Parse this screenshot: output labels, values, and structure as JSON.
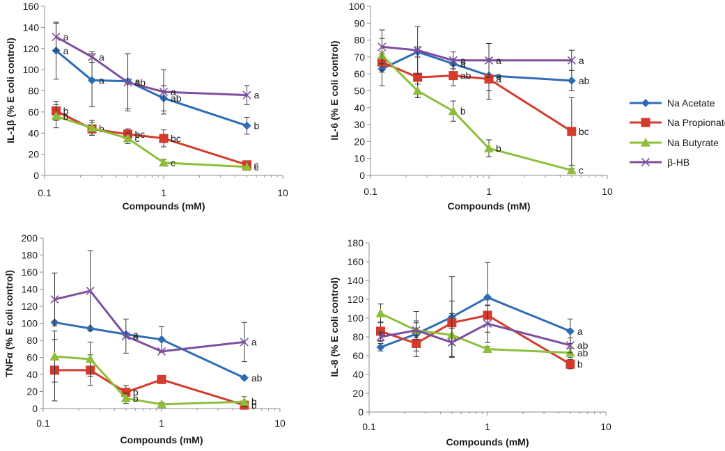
{
  "legend": {
    "position": "right",
    "entries": [
      {
        "name": "Na Acetate",
        "color": "#2E6DB4",
        "marker": "diamond"
      },
      {
        "name": "Na Propionate",
        "color": "#D33B2C",
        "marker": "square"
      },
      {
        "name": "Na Butyrate",
        "color": "#8DBE3A",
        "marker": "triangle"
      },
      {
        "name": "β-HB",
        "color": "#7D4E9E",
        "marker": "cross"
      }
    ]
  },
  "chart_data": [
    {
      "type": "line",
      "xscale": "log",
      "xlabel": "Compounds (mM)",
      "ylabel": "IL-1β (% E coli control)",
      "xlim": [
        0.1,
        10
      ],
      "xticks": [
        "0.1",
        "1",
        "10"
      ],
      "ylim": [
        0,
        160
      ],
      "yticks": [
        "0",
        "20",
        "40",
        "60",
        "80",
        "100",
        "120",
        "140",
        "160"
      ],
      "x": [
        0.125,
        0.25,
        0.5,
        1,
        5
      ],
      "series": [
        {
          "name": "Na Acetate",
          "values": [
            118,
            90,
            89,
            73,
            47
          ],
          "err": [
            27,
            25,
            26,
            12,
            8
          ],
          "labels": [
            "a",
            "a",
            "a",
            "ab",
            "b"
          ]
        },
        {
          "name": "Na Propionate",
          "values": [
            61,
            44,
            39,
            35,
            10
          ],
          "err": [
            9,
            6,
            5,
            8,
            3
          ],
          "labels": [
            "b",
            "b",
            "bc",
            "bc",
            "c"
          ]
        },
        {
          "name": "Na Butyrate",
          "values": [
            56,
            45,
            35,
            12,
            8
          ],
          "err": [
            11,
            7,
            5,
            3,
            2
          ],
          "labels": [
            "b",
            "",
            "c",
            "c",
            "c"
          ]
        },
        {
          "name": "β-HB",
          "values": [
            131,
            112,
            88,
            79,
            76
          ],
          "err": [
            13,
            5,
            27,
            21,
            9
          ],
          "labels": [
            "a",
            "a",
            "ab",
            "a",
            "a"
          ]
        }
      ]
    },
    {
      "type": "line",
      "xscale": "log",
      "xlabel": "Compounds (mM)",
      "ylabel": "IL-6 (% E coli control)",
      "xlim": [
        0.1,
        10
      ],
      "xticks": [
        "0.1",
        "1",
        "10"
      ],
      "ylim": [
        0,
        100
      ],
      "yticks": [
        "0",
        "10",
        "20",
        "30",
        "40",
        "50",
        "60",
        "70",
        "80",
        "90",
        "100"
      ],
      "x": [
        0.125,
        0.25,
        0.5,
        1,
        5
      ],
      "series": [
        {
          "name": "Na Acetate",
          "values": [
            63,
            73,
            66,
            59,
            56
          ],
          "err": [
            10,
            3,
            3,
            9,
            6
          ],
          "labels": [
            "",
            "",
            "a",
            "a",
            "ab"
          ]
        },
        {
          "name": "Na Propionate",
          "values": [
            67,
            58,
            59,
            57,
            26
          ],
          "err": [
            5,
            12,
            6,
            12,
            20
          ],
          "labels": [
            "",
            "",
            "ab",
            "a",
            "bc"
          ]
        },
        {
          "name": "Na Butyrate",
          "values": [
            71,
            50,
            38,
            16,
            3
          ],
          "err": [
            10,
            4,
            6,
            5,
            1
          ],
          "labels": [
            "",
            "",
            "b",
            "b",
            "c"
          ]
        },
        {
          "name": "β-HB",
          "values": [
            76,
            74,
            68,
            68,
            68
          ],
          "err": [
            10,
            14,
            5,
            10,
            6
          ],
          "labels": [
            "",
            "",
            "a",
            "a",
            "a"
          ]
        }
      ]
    },
    {
      "type": "line",
      "xscale": "log",
      "xlabel": "Compounds (mM)",
      "ylabel": "TNFα (% E coli control)",
      "xlim": [
        0.1,
        10
      ],
      "xticks": [
        "0.1",
        "1",
        "10"
      ],
      "ylim": [
        0,
        200
      ],
      "yticks": [
        "0",
        "20",
        "40",
        "60",
        "80",
        "100",
        "120",
        "140",
        "160",
        "180",
        "200"
      ],
      "x": [
        0.125,
        0.25,
        0.5,
        1,
        5
      ],
      "series": [
        {
          "name": "Na Acetate",
          "values": [
            101,
            94,
            87,
            81,
            36
          ],
          "err": [
            0,
            0,
            0,
            15,
            2
          ],
          "labels": [
            "",
            "",
            "a",
            "",
            "ab"
          ]
        },
        {
          "name": "Na Propionate",
          "values": [
            45,
            45,
            19,
            34,
            4
          ],
          "err": [
            36,
            18,
            8,
            0,
            2
          ],
          "labels": [
            "",
            "",
            "b",
            "",
            "b"
          ]
        },
        {
          "name": "Na Butyrate",
          "values": [
            61,
            58,
            12,
            5,
            8
          ],
          "err": [
            30,
            20,
            6,
            2,
            6
          ],
          "labels": [
            "",
            "",
            "b",
            "",
            "b"
          ]
        },
        {
          "name": "β-HB",
          "values": [
            128,
            138,
            85,
            67,
            78
          ],
          "err": [
            31,
            47,
            20,
            0,
            23
          ],
          "labels": [
            "",
            "",
            "a",
            "",
            "a"
          ]
        }
      ]
    },
    {
      "type": "line",
      "xscale": "log",
      "xlabel": "Compounds (mM)",
      "ylabel": "IL-8 (% E coli control)",
      "xlim": [
        0.1,
        10
      ],
      "xticks": [
        "0.1",
        "1",
        "10"
      ],
      "ylim": [
        0,
        180
      ],
      "yticks": [
        "0",
        "20",
        "40",
        "60",
        "80",
        "100",
        "120",
        "140",
        "160",
        "180"
      ],
      "x": [
        0.125,
        0.25,
        0.5,
        1,
        5
      ],
      "series": [
        {
          "name": "Na Acetate",
          "values": [
            69,
            83,
            101,
            122,
            86
          ],
          "err": [
            4,
            24,
            43,
            37,
            13
          ],
          "labels": [
            "",
            "",
            "",
            "",
            "a"
          ]
        },
        {
          "name": "Na Propionate",
          "values": [
            86,
            73,
            95,
            103,
            51
          ],
          "err": [
            10,
            8,
            23,
            10,
            5
          ],
          "labels": [
            "",
            "",
            "",
            "",
            "b"
          ]
        },
        {
          "name": "Na Butyrate",
          "values": [
            105,
            87,
            82,
            67,
            63
          ],
          "err": [
            10,
            8,
            23,
            3,
            5
          ],
          "labels": [
            "",
            "",
            "",
            "",
            "ab"
          ]
        },
        {
          "name": "β-HB",
          "values": [
            80,
            87,
            74,
            94,
            71
          ],
          "err": [
            5,
            10,
            15,
            20,
            8
          ],
          "labels": [
            "",
            "",
            "",
            "",
            "ab"
          ]
        }
      ]
    }
  ]
}
